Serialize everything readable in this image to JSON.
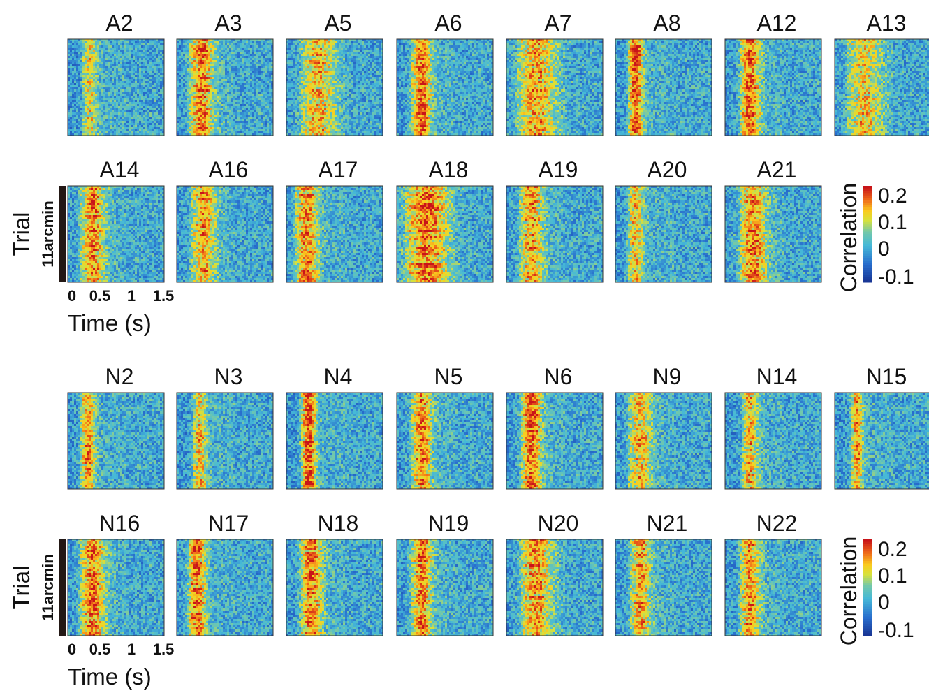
{
  "chart_data": [
    {
      "type": "heatmap",
      "group": "A",
      "panels": [
        "A2",
        "A3",
        "A5",
        "A6",
        "A7",
        "A8",
        "A12",
        "A13",
        "A14",
        "A16",
        "A17",
        "A18",
        "A19",
        "A20",
        "A21"
      ],
      "xlabel": "Time (s)",
      "x_ticks": [
        "0",
        "0.5",
        "1",
        "1.5"
      ],
      "xlim": [
        0,
        1.5
      ],
      "ylabel": "Trial",
      "scale_bar_label": "11arcmin",
      "colorbar": {
        "title": "Correlation",
        "ticks": [
          "0.2",
          "0.1",
          "0",
          "-0.1"
        ],
        "range": [
          -0.1,
          0.2
        ]
      }
    },
    {
      "type": "heatmap",
      "group": "N",
      "panels": [
        "N2",
        "N3",
        "N4",
        "N5",
        "N6",
        "N9",
        "N14",
        "N15",
        "N16",
        "N17",
        "N18",
        "N19",
        "N20",
        "N21",
        "N22"
      ],
      "xlabel": "Time (s)",
      "x_ticks": [
        "0",
        "0.5",
        "1",
        "1.5"
      ],
      "xlim": [
        0,
        1.5
      ],
      "ylabel": "Trial",
      "scale_bar_label": "11arcmin",
      "colorbar": {
        "title": "Correlation",
        "ticks": [
          "0.2",
          "0.1",
          "0",
          "-0.1"
        ],
        "range": [
          -0.1,
          0.2
        ]
      }
    }
  ]
}
